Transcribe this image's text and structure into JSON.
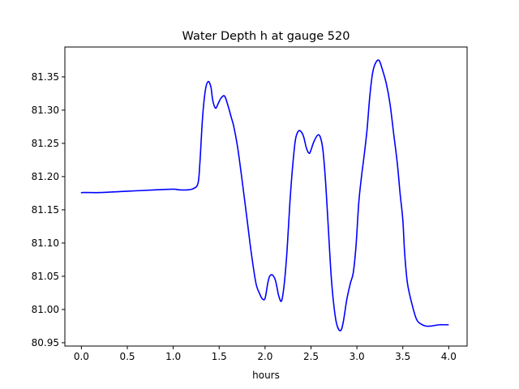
{
  "chart_data": {
    "type": "line",
    "title": "Water Depth h at gauge 520",
    "xlabel": "hours",
    "ylabel": "",
    "xlim": [
      -0.18,
      4.2
    ],
    "ylim": [
      80.945,
      81.395
    ],
    "xticks": [
      0.0,
      0.5,
      1.0,
      1.5,
      2.0,
      2.5,
      3.0,
      3.5,
      4.0
    ],
    "xtick_labels": [
      "0.0",
      "0.5",
      "1.0",
      "1.5",
      "2.0",
      "2.5",
      "3.0",
      "3.5",
      "4.0"
    ],
    "yticks": [
      80.95,
      81.0,
      81.05,
      81.1,
      81.15,
      81.2,
      81.25,
      81.3,
      81.35
    ],
    "ytick_labels": [
      "80.95",
      "81.00",
      "81.05",
      "81.10",
      "81.15",
      "81.20",
      "81.25",
      "81.30",
      "81.35"
    ],
    "grid": false,
    "series": [
      {
        "color": "#0000ff",
        "x": [
          0.0,
          0.02,
          0.2,
          0.5,
          0.8,
          1.0,
          1.07,
          1.15,
          1.22,
          1.27,
          1.29,
          1.32,
          1.35,
          1.38,
          1.41,
          1.43,
          1.46,
          1.49,
          1.52,
          1.56,
          1.6,
          1.63,
          1.66,
          1.7,
          1.74,
          1.8,
          1.85,
          1.9,
          1.94,
          1.97,
          2.0,
          2.03,
          2.05,
          2.08,
          2.11,
          2.13,
          2.15,
          2.18,
          2.21,
          2.24,
          2.27,
          2.3,
          2.33,
          2.36,
          2.39,
          2.42,
          2.45,
          2.48,
          2.5,
          2.53,
          2.57,
          2.6,
          2.63,
          2.66,
          2.69,
          2.72,
          2.75,
          2.78,
          2.82,
          2.85,
          2.89,
          2.93,
          2.96,
          2.99,
          3.02,
          3.05,
          3.08,
          3.11,
          3.14,
          3.17,
          3.2,
          3.24,
          3.28,
          3.32,
          3.36,
          3.4,
          3.44,
          3.47,
          3.5,
          3.52,
          3.55,
          3.6,
          3.65,
          3.7,
          3.75,
          3.8,
          3.85,
          3.9,
          3.94,
          3.97,
          4.0
        ],
        "y": [
          81.175,
          81.176,
          81.176,
          81.178,
          81.18,
          81.181,
          81.18,
          81.18,
          81.182,
          81.19,
          81.22,
          81.29,
          81.33,
          81.343,
          81.335,
          81.315,
          81.303,
          81.31,
          81.318,
          81.321,
          81.305,
          81.29,
          81.275,
          81.245,
          81.205,
          81.14,
          81.085,
          81.04,
          81.024,
          81.016,
          81.017,
          81.04,
          81.05,
          81.052,
          81.045,
          81.033,
          81.02,
          81.013,
          81.04,
          81.09,
          81.16,
          81.215,
          81.255,
          81.268,
          81.268,
          81.26,
          81.243,
          81.235,
          81.24,
          81.252,
          81.262,
          81.26,
          81.24,
          81.19,
          81.12,
          81.05,
          81.005,
          80.978,
          80.968,
          80.98,
          81.015,
          81.04,
          81.055,
          81.095,
          81.16,
          81.2,
          81.233,
          81.27,
          81.32,
          81.355,
          81.37,
          81.375,
          81.36,
          81.34,
          81.31,
          81.265,
          81.22,
          81.175,
          81.135,
          81.085,
          81.04,
          81.008,
          80.985,
          80.978,
          80.975,
          80.975,
          80.976,
          80.977,
          80.977,
          80.977,
          80.977
        ]
      }
    ]
  }
}
